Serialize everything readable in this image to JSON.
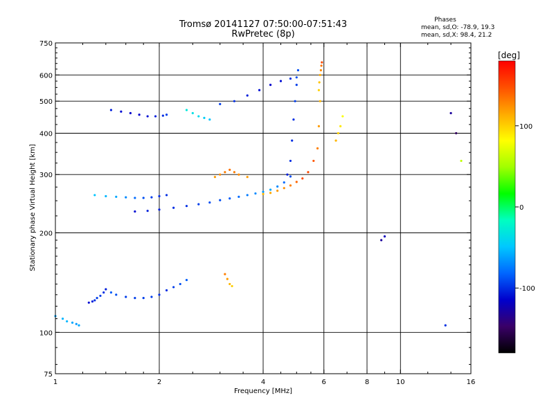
{
  "chart_data": {
    "type": "scatter",
    "title": "Tromsø 20141127 07:50:00-07:51:43",
    "subtitle": "RwPretec (8p)",
    "stats": {
      "heading": "Phases",
      "line_o": "mean, sd,O: -78.9, 19.3",
      "line_x": "mean, sd,X:  98.4, 21.2"
    },
    "xlabel": "Frequency [MHz]",
    "ylabel": "Stationary phase Virtual Height [km]",
    "x_scale": "log",
    "y_scale": "log",
    "xlim": [
      1,
      16
    ],
    "ylim": [
      75,
      750
    ],
    "x_ticks": [
      1,
      2,
      4,
      6,
      8,
      10,
      16
    ],
    "x_ticklabels": [
      "1",
      "2",
      "4",
      "6",
      "8",
      "10",
      "16"
    ],
    "y_ticks": [
      75,
      100,
      200,
      300,
      400,
      500,
      600,
      750
    ],
    "y_ticklabels": [
      "75",
      "100",
      "200",
      "300",
      "400",
      "500",
      "600",
      "750"
    ],
    "grid": true,
    "colorbar": {
      "unit": "[deg]",
      "range": [
        -180,
        180
      ],
      "ticks": [
        100,
        0,
        -100
      ],
      "ticklabels": [
        "100",
        "0",
        "-100"
      ],
      "colormap": [
        "#000000",
        "#3a0068",
        "#0000cc",
        "#0066ff",
        "#00c8ff",
        "#00ffc0",
        "#00ff00",
        "#a0ff00",
        "#ffff00",
        "#ffaa00",
        "#ff5000",
        "#ff0000"
      ]
    },
    "series": [
      {
        "x": [
          1.0,
          1.05,
          1.08,
          1.12,
          1.15,
          1.17
        ],
        "y": [
          112,
          110,
          108,
          107,
          106,
          105
        ],
        "phase": [
          -60,
          -55,
          -55,
          -60,
          -65,
          -60
        ]
      },
      {
        "x": [
          1.25,
          1.28,
          1.3,
          1.32,
          1.35,
          1.38,
          1.4
        ],
        "y": [
          123,
          124,
          125,
          127,
          129,
          132,
          135
        ],
        "phase": [
          -110,
          -105,
          -100,
          -95,
          -95,
          -100,
          -105
        ]
      },
      {
        "x": [
          1.45,
          1.5,
          1.6,
          1.7,
          1.8,
          1.9,
          2.0,
          2.1,
          2.2,
          2.3,
          2.4
        ],
        "y": [
          132,
          130,
          128,
          127,
          127,
          128,
          130,
          134,
          137,
          140,
          144
        ],
        "phase": [
          -85,
          -90,
          -95,
          -95,
          -95,
          -95,
          -100,
          -100,
          -95,
          -90,
          -85
        ]
      },
      {
        "x": [
          1.7,
          1.85,
          2.0,
          2.2,
          2.4,
          2.6,
          2.8,
          3.0,
          3.2,
          3.4,
          3.6,
          3.8,
          4.0,
          4.2,
          4.4,
          4.6,
          4.8
        ],
        "y": [
          232,
          233,
          235,
          238,
          241,
          244,
          247,
          251,
          254,
          257,
          260,
          263,
          266,
          270,
          276,
          284,
          296
        ],
        "phase": [
          -110,
          -105,
          -105,
          -100,
          -100,
          -95,
          -90,
          -90,
          -85,
          -80,
          -75,
          -70,
          -65,
          -60,
          -70,
          -80,
          -90
        ]
      },
      {
        "x": [
          4.0,
          4.2,
          4.4,
          4.6,
          4.8,
          5.0,
          5.2,
          5.4,
          5.6,
          5.75,
          5.8,
          5.85
        ],
        "y": [
          262,
          264,
          268,
          273,
          278,
          285,
          292,
          305,
          330,
          360,
          420,
          500
        ],
        "phase": [
          110,
          115,
          120,
          125,
          130,
          140,
          150,
          150,
          145,
          130,
          120,
          110
        ]
      },
      {
        "x": [
          5.8,
          5.82,
          5.85,
          5.88,
          5.9,
          5.92
        ],
        "y": [
          540,
          570,
          600,
          620,
          640,
          655
        ],
        "phase": [
          100,
          105,
          115,
          125,
          135,
          150
        ]
      },
      {
        "x": [
          4.7,
          4.8,
          4.85,
          4.9,
          4.95,
          5.0,
          5.05
        ],
        "y": [
          300,
          330,
          380,
          440,
          500,
          560,
          620
        ],
        "phase": [
          -105,
          -100,
          -100,
          -100,
          -95,
          -95,
          -90
        ]
      },
      {
        "x": [
          1.3,
          1.4,
          1.5,
          1.6,
          1.7,
          1.8,
          1.9,
          2.0,
          2.1
        ],
        "y": [
          260,
          258,
          257,
          256,
          255,
          255,
          256,
          258,
          260
        ],
        "phase": [
          -50,
          -55,
          -60,
          -70,
          -80,
          -90,
          -95,
          -100,
          -100
        ]
      },
      {
        "x": [
          1.45,
          1.55,
          1.65,
          1.75,
          1.85,
          1.95,
          2.05,
          2.1
        ],
        "y": [
          470,
          465,
          460,
          455,
          450,
          450,
          452,
          455
        ],
        "phase": [
          -105,
          -110,
          -115,
          -115,
          -110,
          -105,
          -100,
          -95
        ]
      },
      {
        "x": [
          3.0,
          3.3,
          3.6,
          3.9,
          4.2,
          4.5,
          4.8,
          5.0
        ],
        "y": [
          490,
          500,
          520,
          540,
          560,
          575,
          585,
          590
        ],
        "phase": [
          -95,
          -100,
          -105,
          -110,
          -115,
          -110,
          -100,
          -90
        ]
      },
      {
        "x": [
          2.9,
          3.0,
          3.1,
          3.2,
          3.3,
          3.4,
          3.6
        ],
        "y": [
          295,
          300,
          305,
          310,
          305,
          300,
          295
        ],
        "phase": [
          120,
          125,
          130,
          135,
          130,
          125,
          120
        ]
      },
      {
        "x": [
          3.1,
          3.15,
          3.2,
          3.25
        ],
        "y": [
          150,
          145,
          140,
          138
        ],
        "phase": [
          130,
          120,
          110,
          100
        ]
      },
      {
        "x": [
          2.4,
          2.5,
          2.6,
          2.7,
          2.8
        ],
        "y": [
          470,
          460,
          450,
          445,
          440
        ],
        "phase": [
          -30,
          -35,
          -40,
          -45,
          -50
        ]
      },
      {
        "x": [
          6.5,
          6.6,
          6.7,
          6.8
        ],
        "y": [
          380,
          400,
          420,
          450
        ],
        "phase": [
          110,
          100,
          90,
          80
        ]
      },
      {
        "x": [
          8.8,
          9.0
        ],
        "y": [
          190,
          195
        ],
        "phase": [
          -130,
          -120
        ]
      },
      {
        "x": [
          13.5,
          14.0,
          14.5,
          15.0
        ],
        "y": [
          105,
          460,
          400,
          330
        ],
        "phase": [
          -100,
          -130,
          -150,
          60
        ]
      }
    ]
  }
}
